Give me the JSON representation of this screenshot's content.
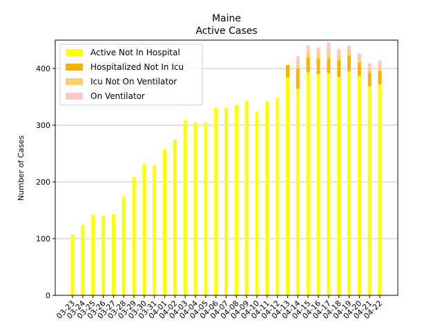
{
  "chart_data": {
    "type": "bar",
    "stacked": true,
    "title": "Maine",
    "subtitle": "Active Cases",
    "xlabel": "",
    "ylabel": "Number of Cases",
    "ylim": [
      0,
      450
    ],
    "yticks": [
      0,
      100,
      200,
      300,
      400
    ],
    "grid": "horizontal",
    "legend_position": "top-left",
    "categories": [
      "03-23",
      "03-24",
      "03-25",
      "03-26",
      "03-27",
      "03-28",
      "03-29",
      "03-30",
      "03-31",
      "04-01",
      "04-02",
      "04-03",
      "04-04",
      "04-05",
      "04-06",
      "04-07",
      "04-08",
      "04-09",
      "04-10",
      "04-11",
      "04-12",
      "04-13",
      "04-14",
      "04-15",
      "04-16",
      "04-17",
      "04-18",
      "04-19",
      "04-20",
      "04-21",
      "04-22"
    ],
    "series": [
      {
        "name": "Active Not In Hospital",
        "color": "#ffff00",
        "values": [
          107,
          124,
          142,
          140,
          143,
          174,
          209,
          231,
          230,
          257,
          275,
          309,
          305,
          305,
          331,
          331,
          336,
          343,
          323,
          342,
          348,
          384,
          364,
          393,
          390,
          392,
          385,
          395,
          387,
          369,
          372
        ]
      },
      {
        "name": "Hospitalized Not In Icu",
        "color": "#ffb000",
        "values": [
          0,
          0,
          0,
          0,
          0,
          0,
          0,
          0,
          0,
          0,
          0,
          0,
          0,
          0,
          0,
          0,
          0,
          0,
          0,
          0,
          0,
          22,
          36,
          26,
          27,
          26,
          29,
          28,
          23,
          24,
          24
        ]
      },
      {
        "name": "Icu Not On Ventilator",
        "color": "#ffd070",
        "values": [
          0,
          0,
          0,
          0,
          0,
          0,
          0,
          0,
          0,
          0,
          0,
          0,
          0,
          0,
          0,
          0,
          0,
          0,
          0,
          0,
          0,
          0,
          12,
          12,
          12,
          16,
          10,
          10,
          7,
          8,
          9
        ]
      },
      {
        "name": "On Ventilator",
        "color": "#ffc8c8",
        "values": [
          0,
          0,
          0,
          0,
          0,
          0,
          0,
          0,
          0,
          0,
          0,
          0,
          0,
          0,
          0,
          0,
          0,
          0,
          0,
          0,
          0,
          0,
          10,
          10,
          8,
          12,
          10,
          7,
          9,
          8,
          9
        ]
      }
    ]
  }
}
